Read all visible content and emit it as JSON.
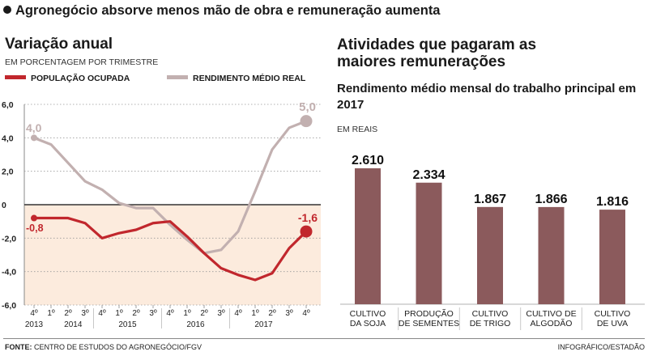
{
  "headline": "Agronegócio absorve menos mão de obra e remuneração aumenta",
  "footer": {
    "source_label": "FONTE:",
    "source_text": " CENTRO DE ESTUDOS DO AGRONEGÓCIO/FGV",
    "credit": "INFOGRÁFICO/ESTADÃO"
  },
  "colors": {
    "ocupada": "#c1272d",
    "rendimento": "#c2b0b0",
    "bar": "#8b5a5c",
    "shade": "#fcebdd"
  },
  "chart_data": [
    {
      "type": "line",
      "title": "Variação anual",
      "subtitle": "EM PORCENTAGEM POR TRIMESTRE",
      "ylim": [
        -6,
        6
      ],
      "yticks": [
        "6,0",
        "4,0",
        "2,0",
        "0",
        "-2,0",
        "-4,0",
        "-6,0"
      ],
      "quarter_labels": [
        "4º",
        "1º",
        "2º",
        "3º",
        "4º",
        "1º",
        "2º",
        "3º",
        "4º",
        "1º",
        "2º",
        "3º",
        "4º",
        "1º",
        "2º",
        "3º",
        "4º"
      ],
      "year_labels": [
        "2013",
        "2014",
        "2015",
        "2016",
        "2017"
      ],
      "series": [
        {
          "name": "POPULAÇÃO OCUPADA",
          "start_label": "-0,8",
          "end_label": "-1,6",
          "values": [
            -0.8,
            -0.8,
            -0.8,
            -1.1,
            -2.0,
            -1.7,
            -1.5,
            -1.1,
            -1.0,
            -1.9,
            -2.9,
            -3.8,
            -4.2,
            -4.5,
            -4.1,
            -2.6,
            -1.6
          ]
        },
        {
          "name": "RENDIMENTO MÉDIO REAL",
          "start_label": "4,0",
          "end_label": "5,0",
          "values": [
            4.0,
            3.6,
            2.5,
            1.4,
            0.9,
            0.1,
            -0.2,
            -0.2,
            -1.2,
            -2.1,
            -2.9,
            -2.7,
            -1.6,
            0.8,
            3.3,
            4.6,
            5.0
          ]
        }
      ]
    },
    {
      "type": "bar",
      "title": "Atividades que pagaram as maiores remunerações",
      "subtitle": "Rendimento médio mensal do trabalho principal em 2017",
      "unit": "EM REAIS",
      "categories": [
        [
          "CULTIVO",
          "DA SOJA"
        ],
        [
          "PRODUÇÃO",
          "DE SEMENTES"
        ],
        [
          "CULTIVO",
          "DE TRIGO"
        ],
        [
          "CULTIVO DE",
          "ALGODÃO"
        ],
        [
          "CULTIVO",
          "DE UVA"
        ]
      ],
      "values": [
        2610,
        2334,
        1867,
        1866,
        1816
      ],
      "value_labels": [
        "2.610",
        "2.334",
        "1.867",
        "1.866",
        "1.816"
      ]
    }
  ]
}
